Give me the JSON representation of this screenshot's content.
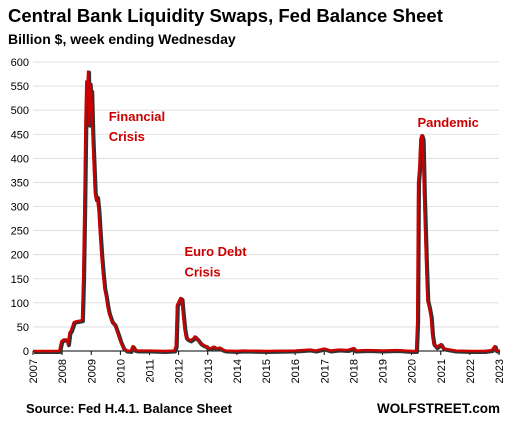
{
  "title": "Central Bank Liquidity Swaps, Fed Balance Sheet",
  "subtitle": "Billion $, week ending Wednesday",
  "source": "Source: Fed H.4.1. Balance Sheet",
  "brand": "WOLFSTREET.com",
  "chart_data": {
    "type": "line",
    "title": "Central Bank Liquidity Swaps, Fed Balance Sheet",
    "subtitle": "Billion $, week ending Wednesday",
    "xlabel": "",
    "ylabel": "",
    "xlim": [
      2007,
      2023
    ],
    "ylim": [
      0,
      600
    ],
    "y_ticks": [
      0,
      50,
      100,
      150,
      200,
      250,
      300,
      350,
      400,
      450,
      500,
      550,
      600
    ],
    "x_ticks": [
      "2007",
      "2008",
      "2009",
      "2010",
      "2011",
      "2012",
      "2013",
      "2014",
      "2015",
      "2016",
      "2017",
      "2018",
      "2019",
      "2020",
      "2021",
      "2022",
      "2023"
    ],
    "grid": "horizontal",
    "line_color": "#cc0000",
    "shadow_color": "#333333",
    "annotation_color": "#cc0000",
    "annotations": [
      {
        "text": "Financial",
        "x": 2009.6,
        "y": 478
      },
      {
        "text": "Crisis",
        "x": 2009.6,
        "y": 436
      },
      {
        "text": "Euro Debt",
        "x": 2012.2,
        "y": 197
      },
      {
        "text": "Crisis",
        "x": 2012.2,
        "y": 155
      },
      {
        "text": "Pandemic",
        "x": 2020.2,
        "y": 465
      }
    ],
    "series": [
      {
        "values": [
          [
            2007.0,
            0
          ],
          [
            2007.9,
            0
          ],
          [
            2007.97,
            20
          ],
          [
            2008.05,
            24
          ],
          [
            2008.15,
            24
          ],
          [
            2008.2,
            14
          ],
          [
            2008.25,
            38
          ],
          [
            2008.3,
            42
          ],
          [
            2008.4,
            60
          ],
          [
            2008.5,
            62
          ],
          [
            2008.6,
            63
          ],
          [
            2008.68,
            64
          ],
          [
            2008.72,
            150
          ],
          [
            2008.76,
            300
          ],
          [
            2008.8,
            480
          ],
          [
            2008.83,
            560
          ],
          [
            2008.86,
            540
          ],
          [
            2008.89,
            580
          ],
          [
            2008.92,
            470
          ],
          [
            2008.95,
            555
          ],
          [
            2008.98,
            500
          ],
          [
            2009.0,
            540
          ],
          [
            2009.04,
            450
          ],
          [
            2009.08,
            390
          ],
          [
            2009.12,
            330
          ],
          [
            2009.16,
            315
          ],
          [
            2009.2,
            320
          ],
          [
            2009.25,
            290
          ],
          [
            2009.3,
            240
          ],
          [
            2009.35,
            195
          ],
          [
            2009.4,
            160
          ],
          [
            2009.45,
            130
          ],
          [
            2009.5,
            115
          ],
          [
            2009.55,
            95
          ],
          [
            2009.6,
            80
          ],
          [
            2009.7,
            62
          ],
          [
            2009.8,
            55
          ],
          [
            2009.9,
            38
          ],
          [
            2010.0,
            20
          ],
          [
            2010.1,
            6
          ],
          [
            2010.2,
            1
          ],
          [
            2010.35,
            0
          ],
          [
            2010.42,
            10
          ],
          [
            2010.5,
            2
          ],
          [
            2010.6,
            1
          ],
          [
            2011.0,
            1
          ],
          [
            2011.5,
            0
          ],
          [
            2011.85,
            1
          ],
          [
            2011.9,
            10
          ],
          [
            2011.94,
            95
          ],
          [
            2011.98,
            100
          ],
          [
            2012.02,
            105
          ],
          [
            2012.06,
            110
          ],
          [
            2012.1,
            108
          ],
          [
            2012.14,
            80
          ],
          [
            2012.2,
            45
          ],
          [
            2012.25,
            28
          ],
          [
            2012.3,
            25
          ],
          [
            2012.4,
            22
          ],
          [
            2012.5,
            26
          ],
          [
            2012.55,
            30
          ],
          [
            2012.65,
            24
          ],
          [
            2012.75,
            16
          ],
          [
            2012.85,
            12
          ],
          [
            2012.95,
            10
          ],
          [
            2013.0,
            5
          ],
          [
            2013.1,
            6
          ],
          [
            2013.2,
            9
          ],
          [
            2013.3,
            5
          ],
          [
            2013.4,
            7
          ],
          [
            2013.5,
            3
          ],
          [
            2013.6,
            1
          ],
          [
            2014.0,
            0
          ],
          [
            2014.2,
            1
          ],
          [
            2015.0,
            0
          ],
          [
            2016.0,
            1
          ],
          [
            2016.5,
            3
          ],
          [
            2016.7,
            1
          ],
          [
            2017.0,
            5
          ],
          [
            2017.2,
            1
          ],
          [
            2017.5,
            3
          ],
          [
            2017.8,
            2
          ],
          [
            2018.0,
            6
          ],
          [
            2018.05,
            1
          ],
          [
            2018.5,
            2
          ],
          [
            2019.0,
            1
          ],
          [
            2019.5,
            2
          ],
          [
            2020.0,
            0
          ],
          [
            2020.15,
            0
          ],
          [
            2020.19,
            60
          ],
          [
            2020.22,
            350
          ],
          [
            2020.26,
            380
          ],
          [
            2020.3,
            440
          ],
          [
            2020.34,
            448
          ],
          [
            2020.38,
            440
          ],
          [
            2020.42,
            330
          ],
          [
            2020.46,
            250
          ],
          [
            2020.5,
            170
          ],
          [
            2020.54,
            105
          ],
          [
            2020.6,
            90
          ],
          [
            2020.66,
            70
          ],
          [
            2020.7,
            35
          ],
          [
            2020.75,
            15
          ],
          [
            2020.85,
            8
          ],
          [
            2021.0,
            14
          ],
          [
            2021.08,
            6
          ],
          [
            2021.2,
            4
          ],
          [
            2021.5,
            1
          ],
          [
            2022.0,
            0
          ],
          [
            2022.5,
            0
          ],
          [
            2022.75,
            2
          ],
          [
            2022.85,
            10
          ],
          [
            2022.9,
            1
          ],
          [
            2023.0,
            1
          ]
        ]
      }
    ]
  }
}
